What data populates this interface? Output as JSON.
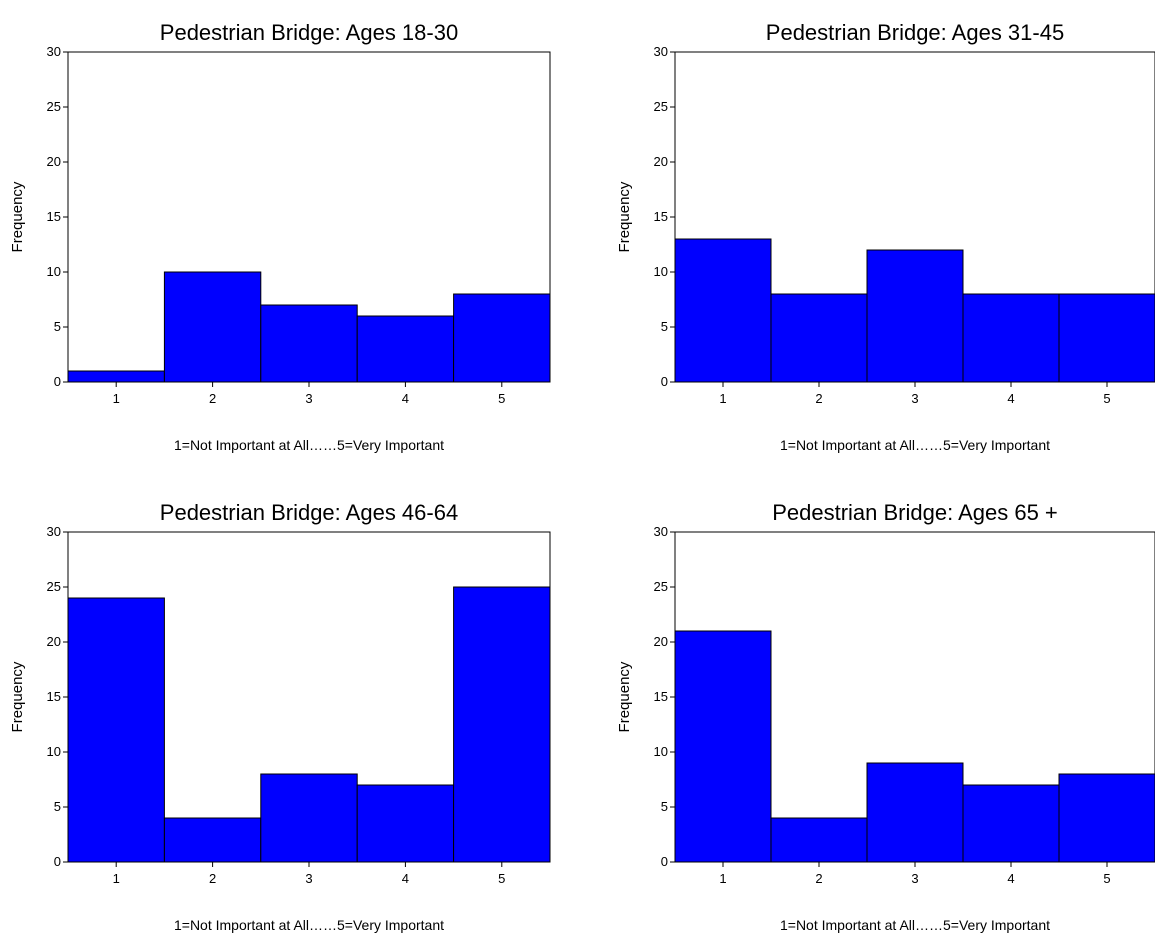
{
  "bar_color": "#0000FF",
  "chart_data": [
    {
      "type": "bar",
      "title": "Pedestrian Bridge:  Ages 18-30",
      "xlabel": "1=Not Important at All……5=Very Important",
      "ylabel": "Frequency",
      "categories": [
        "1",
        "2",
        "3",
        "4",
        "5"
      ],
      "values": [
        1,
        10,
        7,
        6,
        8
      ],
      "ylim": [
        0,
        30
      ],
      "yticks": [
        0,
        5,
        10,
        15,
        20,
        25,
        30
      ],
      "grid": false
    },
    {
      "type": "bar",
      "title": "Pedestrian Bridge:  Ages 31-45",
      "xlabel": "1=Not Important at All……5=Very Important",
      "ylabel": "Frequency",
      "categories": [
        "1",
        "2",
        "3",
        "4",
        "5"
      ],
      "values": [
        13,
        8,
        12,
        8,
        8
      ],
      "ylim": [
        0,
        30
      ],
      "yticks": [
        0,
        5,
        10,
        15,
        20,
        25,
        30
      ],
      "grid": false
    },
    {
      "type": "bar",
      "title": "Pedestrian Bridge:  Ages 46-64",
      "xlabel": "1=Not Important at All……5=Very Important",
      "ylabel": "Frequency",
      "categories": [
        "1",
        "2",
        "3",
        "4",
        "5"
      ],
      "values": [
        24,
        4,
        8,
        7,
        25
      ],
      "ylim": [
        0,
        30
      ],
      "yticks": [
        0,
        5,
        10,
        15,
        20,
        25,
        30
      ],
      "grid": false
    },
    {
      "type": "bar",
      "title": "Pedestrian Bridge:  Ages 65 +",
      "xlabel": "1=Not Important at All……5=Very Important",
      "ylabel": "Frequency",
      "categories": [
        "1",
        "2",
        "3",
        "4",
        "5"
      ],
      "values": [
        21,
        4,
        9,
        7,
        8
      ],
      "ylim": [
        0,
        30
      ],
      "yticks": [
        0,
        5,
        10,
        15,
        20,
        25,
        30
      ],
      "grid": false
    }
  ]
}
